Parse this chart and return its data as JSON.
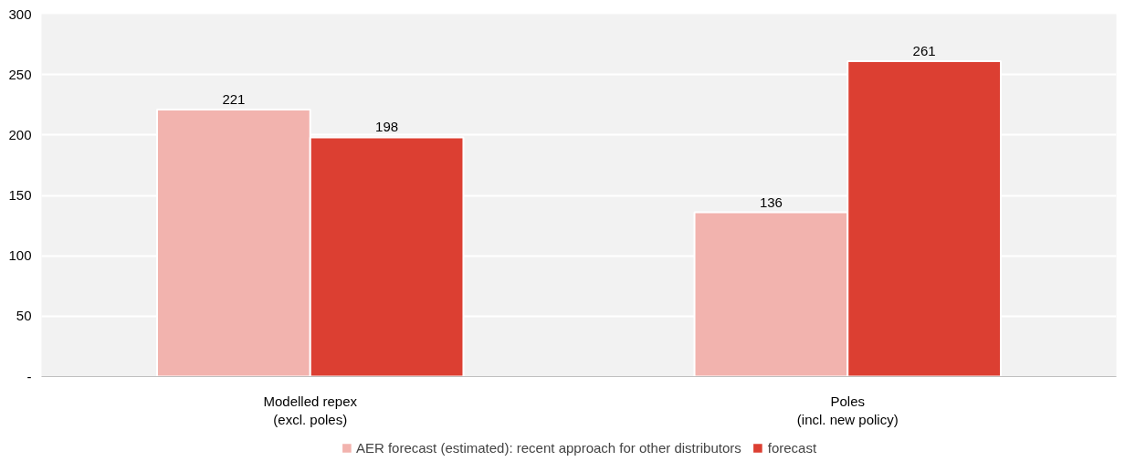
{
  "chart_data": {
    "type": "bar",
    "categories": [
      "Modelled repex\n(excl. poles)",
      "Poles\n(incl. new policy)"
    ],
    "series": [
      {
        "name": "AER forecast (estimated): recent approach for other distributors",
        "color": "#f2b3ae",
        "values": [
          221,
          136
        ]
      },
      {
        "name": "forecast",
        "color": "#dc3f32",
        "values": [
          198,
          261
        ]
      }
    ],
    "ylim": [
      0,
      300
    ],
    "yticks": [
      {
        "value": 0,
        "label": "-"
      },
      50,
      100,
      150,
      200,
      250,
      300
    ],
    "grid": "y",
    "legend": "bottom",
    "data_labels": true
  }
}
